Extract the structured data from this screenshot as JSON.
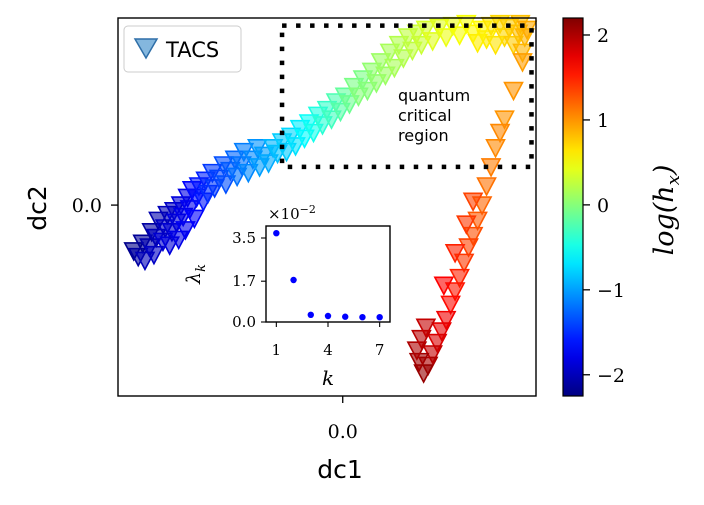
{
  "chart_data": [
    {
      "type": "scatter",
      "marker": "triangle-down",
      "xlabel": "dc1",
      "ylabel": "dc2",
      "xticks": [
        {
          "value": 0.0,
          "label": "0.0"
        }
      ],
      "yticks": [
        {
          "value": 0.0,
          "label": "0.0"
        }
      ],
      "xlim": [
        -1.0,
        0.86
      ],
      "ylim": [
        -1.0,
        0.98
      ],
      "legend": {
        "location": "top-left",
        "entries": [
          "TACS"
        ]
      },
      "annotation": {
        "lines": [
          "quantum",
          "critical",
          "region"
        ],
        "box_x": [
          -0.27,
          0.84
        ],
        "box_y": [
          0.2,
          0.94
        ]
      },
      "colorbar": {
        "label": "log(h_x)",
        "label_display": "log(h",
        "label_sub": "x",
        "range": [
          -2.25,
          2.2
        ],
        "ticks": [
          {
            "value": -2,
            "label": "−2"
          },
          {
            "value": -1,
            "label": "−1"
          },
          {
            "value": 0,
            "label": "0"
          },
          {
            "value": 1,
            "label": "1"
          },
          {
            "value": 2,
            "label": "2"
          }
        ],
        "colormap": "jet"
      },
      "series": [
        {
          "points": [
            [
              -0.93,
              -0.24,
              -2.2
            ],
            [
              -0.91,
              -0.27,
              -2.1
            ],
            [
              -0.89,
              -0.2,
              -2.15
            ],
            [
              -0.88,
              -0.29,
              -2.0
            ],
            [
              -0.86,
              -0.22,
              -2.05
            ],
            [
              -0.85,
              -0.14,
              -2.1
            ],
            [
              -0.84,
              -0.26,
              -1.95
            ],
            [
              -0.83,
              -0.17,
              -2.0
            ],
            [
              -0.82,
              -0.08,
              -2.05
            ],
            [
              -0.8,
              -0.19,
              -1.9
            ],
            [
              -0.79,
              -0.12,
              -1.95
            ],
            [
              -0.78,
              -0.05,
              -2.0
            ],
            [
              -0.77,
              -0.21,
              -1.85
            ],
            [
              -0.76,
              -0.14,
              -1.9
            ],
            [
              -0.75,
              -0.03,
              -1.95
            ],
            [
              -0.74,
              -0.09,
              -1.85
            ],
            [
              -0.73,
              -0.18,
              -1.8
            ],
            [
              -0.72,
              0.0,
              -1.85
            ],
            [
              -0.71,
              -0.06,
              -1.8
            ],
            [
              -0.7,
              -0.13,
              -1.75
            ],
            [
              -0.69,
              0.04,
              -1.8
            ],
            [
              -0.68,
              -0.02,
              -1.75
            ],
            [
              -0.67,
              0.08,
              -1.7
            ],
            [
              -0.66,
              -0.07,
              -1.7
            ],
            [
              -0.65,
              0.04,
              -1.65
            ],
            [
              -0.64,
              0.1,
              -1.6
            ],
            [
              -0.62,
              0.02,
              -1.6
            ],
            [
              -0.61,
              0.13,
              -1.55
            ],
            [
              -0.6,
              0.06,
              -1.5
            ],
            [
              -0.58,
              0.17,
              -1.45
            ],
            [
              -0.57,
              0.09,
              -1.45
            ],
            [
              -0.55,
              0.14,
              -1.4
            ],
            [
              -0.53,
              0.21,
              -1.35
            ],
            [
              -0.52,
              0.11,
              -1.35
            ],
            [
              -0.5,
              0.18,
              -1.3
            ],
            [
              -0.48,
              0.24,
              -1.25
            ],
            [
              -0.47,
              0.15,
              -1.2
            ],
            [
              -0.45,
              0.21,
              -1.2
            ],
            [
              -0.44,
              0.28,
              -1.15
            ],
            [
              -0.42,
              0.17,
              -1.1
            ],
            [
              -0.4,
              0.24,
              -1.1
            ],
            [
              -0.38,
              0.3,
              -1.05
            ],
            [
              -0.37,
              0.2,
              -1.0
            ],
            [
              -0.35,
              0.26,
              -1.0
            ],
            [
              -0.33,
              0.22,
              -0.95
            ],
            [
              -0.31,
              0.3,
              -0.9
            ],
            [
              -0.29,
              0.27,
              -0.85
            ],
            [
              -0.27,
              0.33,
              -0.8
            ],
            [
              -0.25,
              0.28,
              -0.8
            ],
            [
              -0.23,
              0.36,
              -0.75
            ],
            [
              -0.21,
              0.31,
              -0.7
            ],
            [
              -0.19,
              0.4,
              -0.65
            ],
            [
              -0.17,
              0.35,
              -0.6
            ],
            [
              -0.15,
              0.43,
              -0.55
            ],
            [
              -0.13,
              0.38,
              -0.5
            ],
            [
              -0.11,
              0.47,
              -0.45
            ],
            [
              -0.09,
              0.42,
              -0.4
            ],
            [
              -0.07,
              0.5,
              -0.35
            ],
            [
              -0.05,
              0.45,
              -0.3
            ],
            [
              -0.03,
              0.54,
              -0.25
            ],
            [
              -0.01,
              0.49,
              -0.2
            ],
            [
              0.01,
              0.57,
              -0.15
            ],
            [
              0.03,
              0.53,
              -0.1
            ],
            [
              0.05,
              0.62,
              -0.05
            ],
            [
              0.07,
              0.57,
              0.0
            ],
            [
              0.09,
              0.66,
              -0.05
            ],
            [
              0.11,
              0.6,
              0.0
            ],
            [
              0.13,
              0.7,
              0.05
            ],
            [
              0.15,
              0.64,
              0.05
            ],
            [
              0.17,
              0.75,
              0.1
            ],
            [
              0.19,
              0.68,
              0.1
            ],
            [
              0.21,
              0.8,
              0.15
            ],
            [
              0.23,
              0.72,
              0.15
            ],
            [
              0.25,
              0.84,
              0.2
            ],
            [
              0.27,
              0.77,
              0.2
            ],
            [
              0.29,
              0.88,
              0.25
            ],
            [
              0.31,
              0.81,
              0.25
            ],
            [
              0.33,
              0.9,
              0.3
            ],
            [
              0.35,
              0.84,
              0.3
            ],
            [
              0.37,
              0.92,
              0.35
            ],
            [
              0.4,
              0.86,
              0.4
            ],
            [
              0.43,
              0.93,
              0.4
            ],
            [
              0.46,
              0.88,
              0.45
            ],
            [
              0.49,
              0.94,
              0.45
            ],
            [
              0.52,
              0.89,
              0.5
            ],
            [
              0.55,
              0.95,
              0.5
            ],
            [
              0.58,
              0.9,
              0.55
            ],
            [
              0.6,
              0.85,
              0.6
            ],
            [
              0.62,
              0.92,
              0.55
            ],
            [
              0.64,
              0.87,
              0.6
            ],
            [
              0.66,
              0.94,
              0.65
            ],
            [
              0.68,
              0.84,
              0.65
            ],
            [
              0.7,
              0.95,
              0.7
            ],
            [
              0.72,
              0.88,
              0.7
            ],
            [
              0.74,
              0.93,
              0.75
            ],
            [
              0.76,
              0.84,
              0.75
            ],
            [
              0.78,
              0.9,
              0.8
            ],
            [
              0.79,
              0.95,
              0.8
            ],
            [
              0.8,
              0.8,
              0.85
            ],
            [
              0.81,
              0.88,
              0.85
            ],
            [
              0.82,
              0.92,
              0.9
            ],
            [
              0.8,
              0.75,
              0.95
            ],
            [
              0.76,
              0.6,
              1.0
            ],
            [
              0.72,
              0.45,
              1.0
            ],
            [
              0.68,
              0.3,
              1.05
            ],
            [
              0.7,
              0.38,
              1.05
            ],
            [
              0.66,
              0.2,
              1.1
            ],
            [
              0.64,
              0.1,
              1.15
            ],
            [
              0.62,
              0.0,
              1.2
            ],
            [
              0.6,
              -0.08,
              1.25
            ],
            [
              0.58,
              -0.16,
              1.3
            ],
            [
              0.56,
              -0.22,
              1.35
            ],
            [
              0.54,
              -0.3,
              1.4
            ],
            [
              0.52,
              -0.38,
              1.5
            ],
            [
              0.5,
              -0.45,
              1.55
            ],
            [
              0.48,
              -0.52,
              1.6
            ],
            [
              0.46,
              -0.6,
              1.7
            ],
            [
              0.44,
              -0.66,
              1.75
            ],
            [
              0.42,
              -0.72,
              1.8
            ],
            [
              0.4,
              -0.78,
              1.9
            ],
            [
              0.38,
              -0.84,
              2.0
            ],
            [
              0.36,
              -0.88,
              2.1
            ],
            [
              0.34,
              -0.82,
              2.05
            ],
            [
              0.33,
              -0.76,
              2.0
            ],
            [
              0.35,
              -0.7,
              1.95
            ],
            [
              0.37,
              -0.64,
              1.9
            ],
            [
              0.45,
              -0.42,
              1.65
            ],
            [
              0.5,
              -0.25,
              1.5
            ],
            [
              0.55,
              -0.1,
              1.4
            ],
            [
              0.58,
              0.02,
              1.35
            ]
          ]
        }
      ]
    },
    {
      "type": "scatter",
      "inset": true,
      "xlabel": "k",
      "ylabel": "λ_k",
      "ylabel_display": "λ",
      "ylabel_sub": "k",
      "offset_text": "×10",
      "offset_exp": "−2",
      "xticks": [
        1,
        4,
        7
      ],
      "yticks": [
        {
          "value": 0.0,
          "label": "0.0"
        },
        {
          "value": 1.7,
          "label": "1.7"
        },
        {
          "value": 3.5,
          "label": "3.5"
        }
      ],
      "xlim": [
        0.4,
        7.6
      ],
      "ylim": [
        0.0,
        4.0
      ],
      "marker_color": "#0000ff",
      "x": [
        1,
        2,
        3,
        4,
        5,
        6,
        7
      ],
      "y": [
        3.7,
        1.75,
        0.3,
        0.25,
        0.22,
        0.2,
        0.2
      ]
    }
  ]
}
